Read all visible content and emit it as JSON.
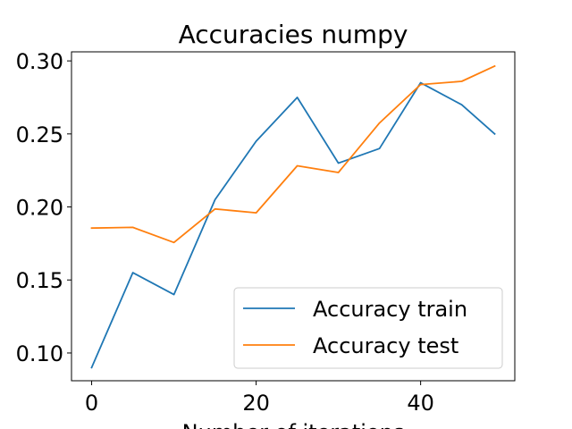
{
  "chart_data": {
    "type": "line",
    "title": "Accuracies numpy",
    "xlabel": "Number of iterations",
    "ylabel": "",
    "xlim": [
      -2.45,
      51.45
    ],
    "ylim": [
      0.081,
      0.3062
    ],
    "xticks": [
      0,
      20,
      40
    ],
    "xtick_labels": [
      "0",
      "20",
      "40"
    ],
    "yticks": [
      0.1,
      0.15,
      0.2,
      0.25,
      0.3
    ],
    "ytick_labels": [
      "0.10",
      "0.15",
      "0.20",
      "0.25",
      "0.30"
    ],
    "grid": false,
    "legend_position": "lower-right",
    "x": [
      0,
      5,
      10,
      15,
      20,
      25,
      30,
      35,
      40,
      45,
      49
    ],
    "series": [
      {
        "name": "Accuracy train",
        "color": "#1f77b4",
        "values": [
          0.09,
          0.155,
          0.14,
          0.205,
          0.245,
          0.275,
          0.23,
          0.24,
          0.285,
          0.27,
          0.25
        ]
      },
      {
        "name": "Accuracy test",
        "color": "#ff7f0e",
        "values": [
          0.1855,
          0.186,
          0.1757,
          0.1986,
          0.196,
          0.2282,
          0.2236,
          0.2575,
          0.2838,
          0.286,
          0.2965
        ]
      }
    ]
  }
}
